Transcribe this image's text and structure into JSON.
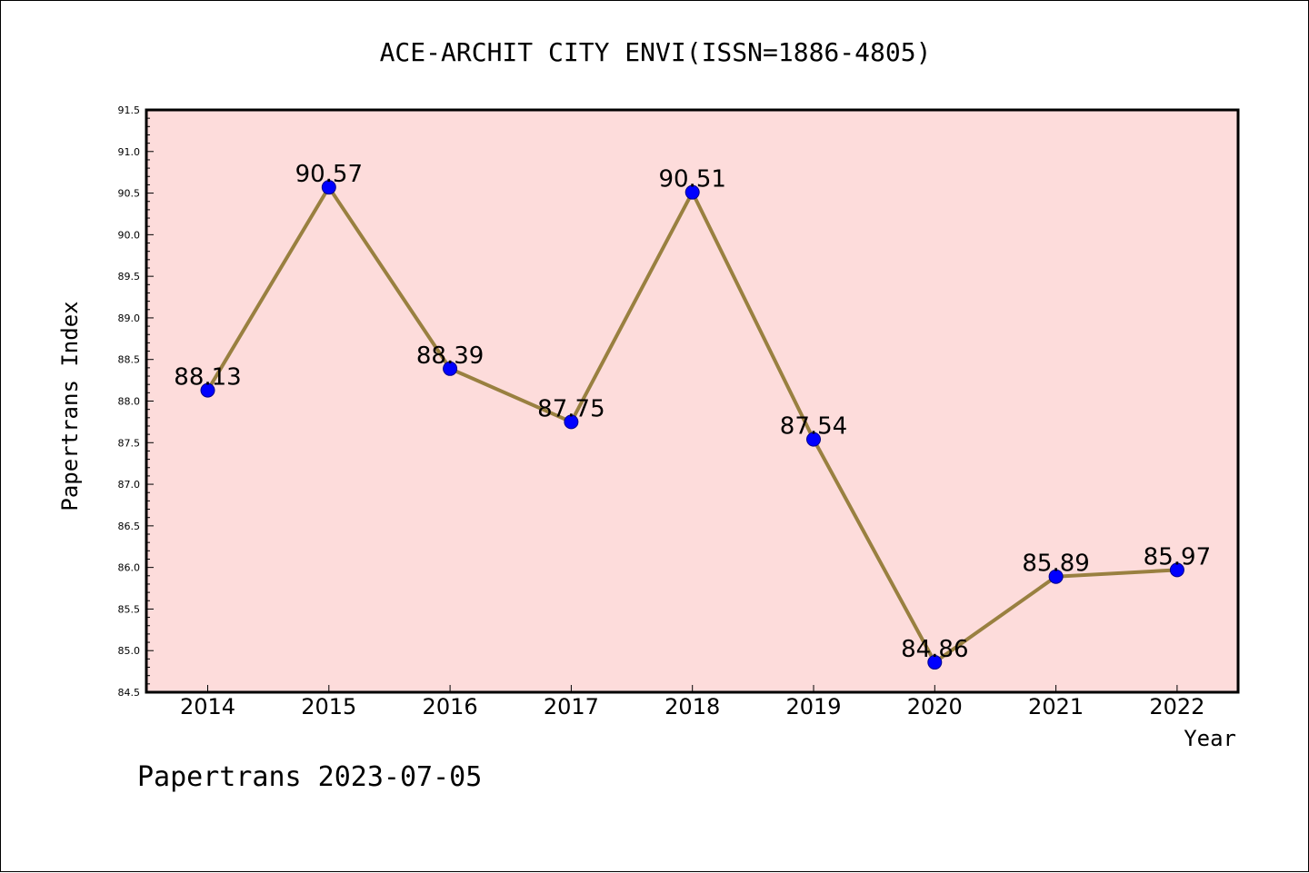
{
  "chart_data": {
    "type": "line",
    "title": "ACE-ARCHIT CITY ENVI(ISSN=1886-4805)",
    "xlabel": "Year",
    "ylabel": "Papertrans Index",
    "categories": [
      "2014",
      "2015",
      "2016",
      "2017",
      "2018",
      "2019",
      "2020",
      "2021",
      "2022"
    ],
    "values": [
      88.13,
      90.57,
      88.39,
      87.75,
      90.51,
      87.54,
      84.86,
      85.89,
      85.97
    ],
    "data_labels": [
      "88.13",
      "90.57",
      "88.39",
      "87.75",
      "90.51",
      "87.54",
      "84.86",
      "85.89",
      "85.97"
    ],
    "ylim": [
      84.5,
      91.5
    ],
    "y_ticks": [
      "84.5",
      "85.0",
      "85.5",
      "86.0",
      "86.5",
      "87.0",
      "87.5",
      "88.0",
      "88.5",
      "89.0",
      "89.5",
      "90.0",
      "90.5",
      "91.0",
      "91.5"
    ],
    "grid": false,
    "colors": {
      "plot_background": "#fddcdb",
      "line": "#998040",
      "marker": "#0000ff",
      "marker_edge": "#00008b"
    }
  },
  "footer": "Papertrans 2023-07-05"
}
